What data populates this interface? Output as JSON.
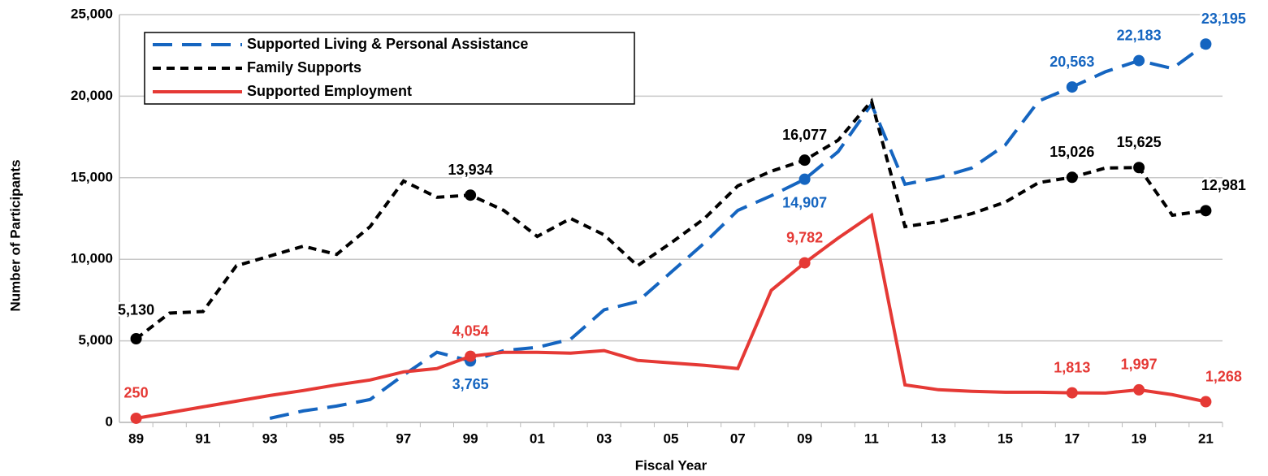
{
  "chart_data": {
    "type": "line",
    "y_label": "Number of Participants",
    "x_label": "Fiscal Year",
    "categories": [
      "89",
      null,
      "91",
      null,
      "93",
      null,
      "95",
      null,
      "97",
      null,
      "99",
      null,
      "01",
      null,
      "03",
      null,
      "05",
      null,
      "07",
      null,
      "09",
      null,
      "11",
      null,
      "13",
      null,
      "15",
      null,
      "17",
      null,
      "19",
      null,
      "21"
    ],
    "ylim": [
      0,
      25000
    ],
    "yticks": [
      0,
      {
        "value": 5000,
        "label": "5,000"
      },
      {
        "value": 10000,
        "label": "10,000"
      },
      {
        "value": 15000,
        "label": "15,000"
      },
      {
        "value": 20000,
        "label": "20,000"
      },
      {
        "value": 25000,
        "label": "25,000"
      }
    ],
    "grid": true,
    "legend": "upper left",
    "series": [
      {
        "name": "Supported Living & Personal Assistance",
        "color": "#1565c0",
        "dash": "dashed",
        "values": [
          null,
          null,
          null,
          null,
          250,
          700,
          1000,
          1400,
          2900,
          4300,
          3765,
          4400,
          4600,
          5100,
          6900,
          7400,
          9200,
          11000,
          13000,
          13900,
          14907,
          16600,
          19500,
          14600,
          15000,
          15600,
          17000,
          19700,
          20563,
          21500,
          22183,
          21700,
          23195
        ],
        "value_labels": [
          null,
          null,
          null,
          null,
          null,
          null,
          null,
          null,
          null,
          null,
          "3,765",
          null,
          null,
          null,
          null,
          null,
          null,
          null,
          null,
          null,
          "14,907",
          null,
          null,
          null,
          null,
          null,
          null,
          null,
          "20,563",
          null,
          "22,183",
          null,
          "23,195"
        ]
      },
      {
        "name": "Family Supports",
        "color": "#000000",
        "dash": "dotted",
        "values": [
          5130,
          6700,
          6800,
          9600,
          10200,
          10800,
          10300,
          12000,
          14800,
          13800,
          13934,
          13000,
          11400,
          12500,
          11500,
          9600,
          11000,
          12500,
          14500,
          15400,
          16077,
          17300,
          19700,
          12000,
          12300,
          12800,
          13500,
          14700,
          15026,
          15600,
          15625,
          12700,
          12981
        ],
        "value_labels": [
          "5,130",
          null,
          null,
          null,
          null,
          null,
          null,
          null,
          null,
          null,
          "13,934",
          null,
          null,
          null,
          null,
          null,
          null,
          null,
          null,
          null,
          "16,077",
          null,
          null,
          null,
          null,
          null,
          null,
          null,
          "15,026",
          null,
          "15,625",
          null,
          "12,981"
        ]
      },
      {
        "name": "Supported Employment",
        "color": "#e53935",
        "dash": "solid",
        "values": [
          250,
          600,
          950,
          1300,
          1650,
          1950,
          2300,
          2600,
          3100,
          3300,
          4054,
          4300,
          4300,
          4250,
          4400,
          3800,
          3650,
          3500,
          3300,
          8100,
          9782,
          11300,
          12700,
          2300,
          2000,
          1900,
          1850,
          1850,
          1813,
          1800,
          1997,
          1700,
          1268
        ],
        "value_labels": [
          "250",
          null,
          null,
          null,
          null,
          null,
          null,
          null,
          null,
          null,
          "4,054",
          null,
          null,
          null,
          null,
          null,
          null,
          null,
          null,
          null,
          "9,782",
          null,
          null,
          null,
          null,
          null,
          null,
          null,
          "1,813",
          null,
          "1,997",
          null,
          "1,268"
        ]
      }
    ]
  }
}
